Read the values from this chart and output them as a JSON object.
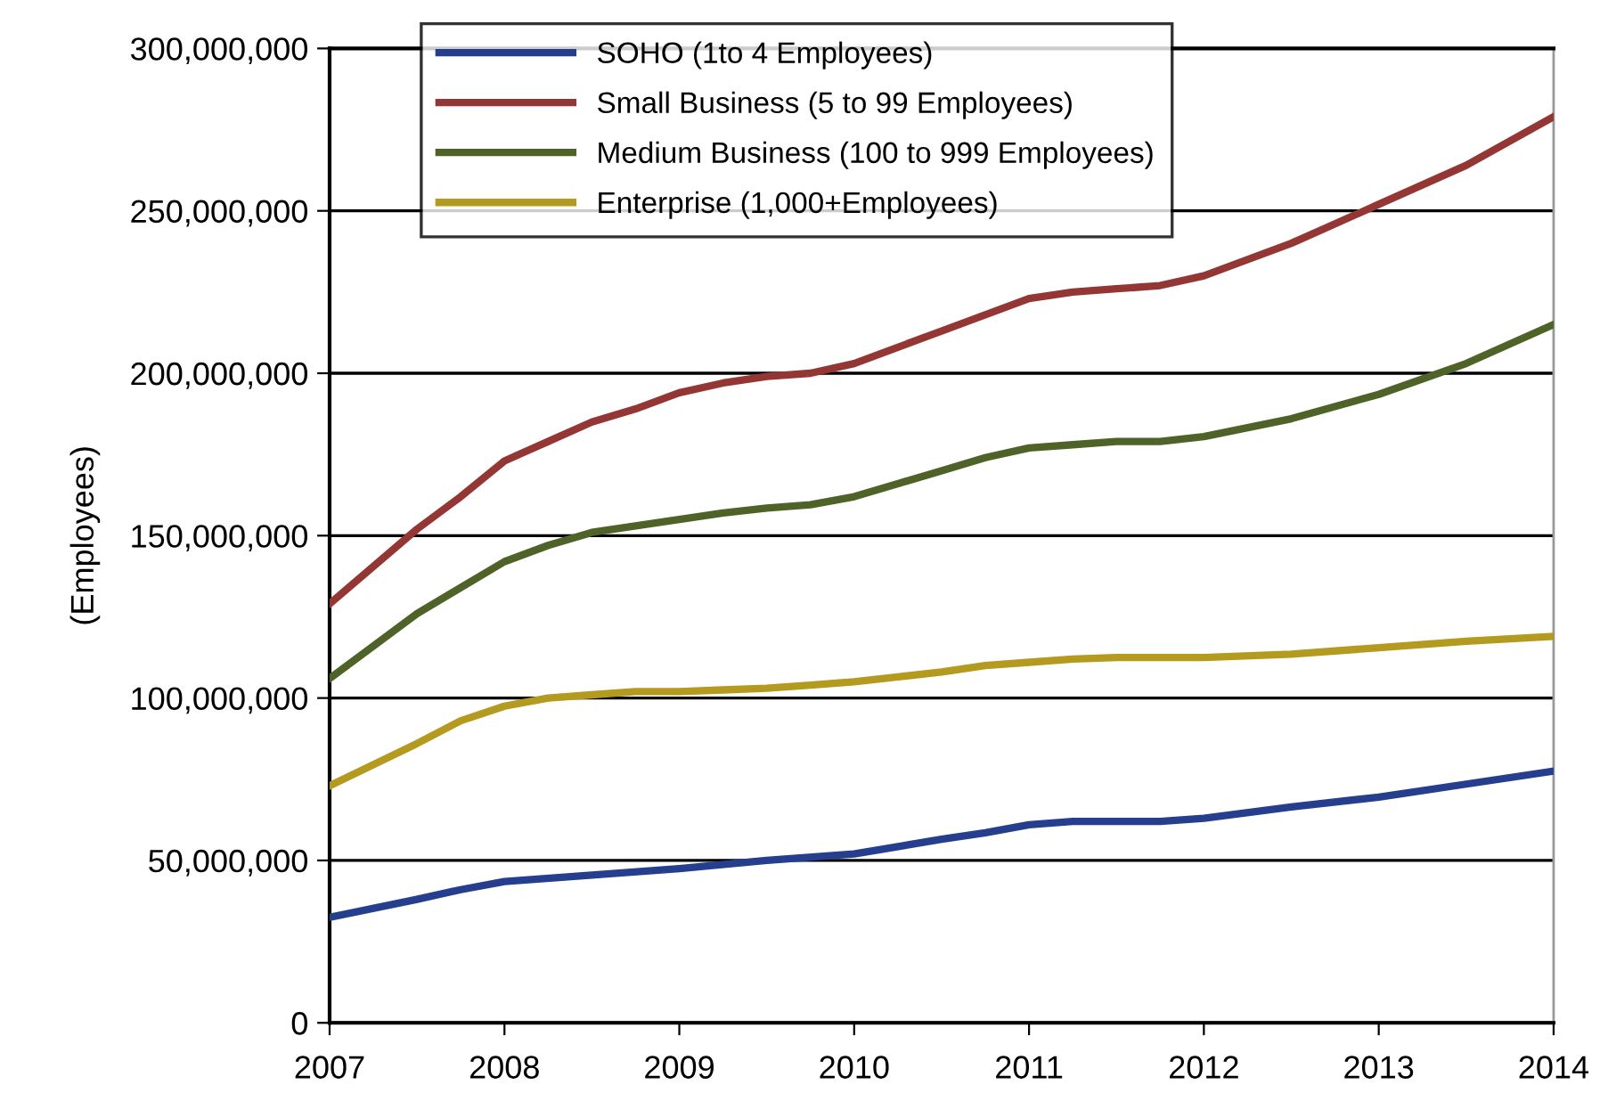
{
  "chart_data": {
    "type": "line",
    "ylabel": "(Employees)",
    "xlim": [
      2007,
      2014
    ],
    "xticks": [
      2007,
      2008,
      2009,
      2010,
      2011,
      2012,
      2013,
      2014
    ],
    "ylim": [
      0,
      300000000
    ],
    "yticks": [
      {
        "value": 0,
        "label": "0"
      },
      {
        "value": 50000000,
        "label": "50,000,000"
      },
      {
        "value": 100000000,
        "label": "100,000,000"
      },
      {
        "value": 150000000,
        "label": "150,000,000"
      },
      {
        "value": 200000000,
        "label": "200,000,000"
      },
      {
        "value": 250000000,
        "label": "250,000,000"
      },
      {
        "value": 300000000,
        "label": "300,000,000"
      }
    ],
    "grid": "y",
    "legend": "top",
    "marker": "none",
    "line_style": "solid",
    "series": [
      {
        "name": "SOHO (1to 4 Employees)",
        "color": "#253f8e",
        "x": [
          2007,
          2007.5,
          2007.75,
          2008,
          2008.5,
          2009,
          2009.5,
          2010,
          2010.5,
          2010.75,
          2011,
          2011.25,
          2011.75,
          2012,
          2012.5,
          2013,
          2013.5,
          2014
        ],
        "values": [
          32500000,
          38000000,
          41000000,
          43500000,
          45500000,
          47500000,
          50000000,
          52000000,
          56500000,
          58500000,
          61000000,
          62000000,
          62000000,
          63000000,
          66500000,
          69500000,
          73500000,
          77500000
        ]
      },
      {
        "name": "Small Business (5 to 99 Employees)",
        "color": "#943634",
        "x": [
          2007,
          2007.5,
          2007.75,
          2008,
          2008.25,
          2008.5,
          2008.75,
          2009,
          2009.25,
          2009.5,
          2009.75,
          2010,
          2010.25,
          2010.5,
          2010.75,
          2011,
          2011.25,
          2011.5,
          2011.75,
          2012,
          2012.5,
          2013,
          2013.5,
          2014
        ],
        "values": [
          129000000,
          152000000,
          162000000,
          173000000,
          179000000,
          185000000,
          189000000,
          194000000,
          197000000,
          199000000,
          200000000,
          203000000,
          208000000,
          213000000,
          218000000,
          223000000,
          225000000,
          226000000,
          227000000,
          230000000,
          240000000,
          252000000,
          264000000,
          279000000
        ]
      },
      {
        "name": "Medium Business (100 to 999 Employees)",
        "color": "#4f6228",
        "x": [
          2007,
          2007.5,
          2007.75,
          2008,
          2008.25,
          2008.5,
          2008.75,
          2009,
          2009.25,
          2009.5,
          2009.75,
          2010,
          2010.25,
          2010.5,
          2010.75,
          2011,
          2011.25,
          2011.5,
          2011.75,
          2012,
          2012.5,
          2013,
          2013.5,
          2014
        ],
        "values": [
          106000000,
          126000000,
          134000000,
          142000000,
          147000000,
          151000000,
          153000000,
          155000000,
          157000000,
          158500000,
          159500000,
          162000000,
          166000000,
          170000000,
          174000000,
          177000000,
          178000000,
          179000000,
          179000000,
          180500000,
          186000000,
          193500000,
          203000000,
          215000000
        ]
      },
      {
        "name": "Enterprise (1,000+Employees)",
        "color": "#b49a1e",
        "x": [
          2007,
          2007.5,
          2007.75,
          2008,
          2008.25,
          2008.5,
          2008.75,
          2009,
          2009.25,
          2009.5,
          2009.75,
          2010,
          2010.25,
          2010.5,
          2010.75,
          2011,
          2011.25,
          2011.5,
          2011.75,
          2012,
          2012.5,
          2013,
          2013.5,
          2014
        ],
        "values": [
          73000000,
          86000000,
          93000000,
          97500000,
          100000000,
          101000000,
          102000000,
          102000000,
          102500000,
          103000000,
          104000000,
          105000000,
          106500000,
          108000000,
          110000000,
          111000000,
          112000000,
          112500000,
          112500000,
          112500000,
          113500000,
          115500000,
          117500000,
          119000000
        ]
      }
    ]
  }
}
